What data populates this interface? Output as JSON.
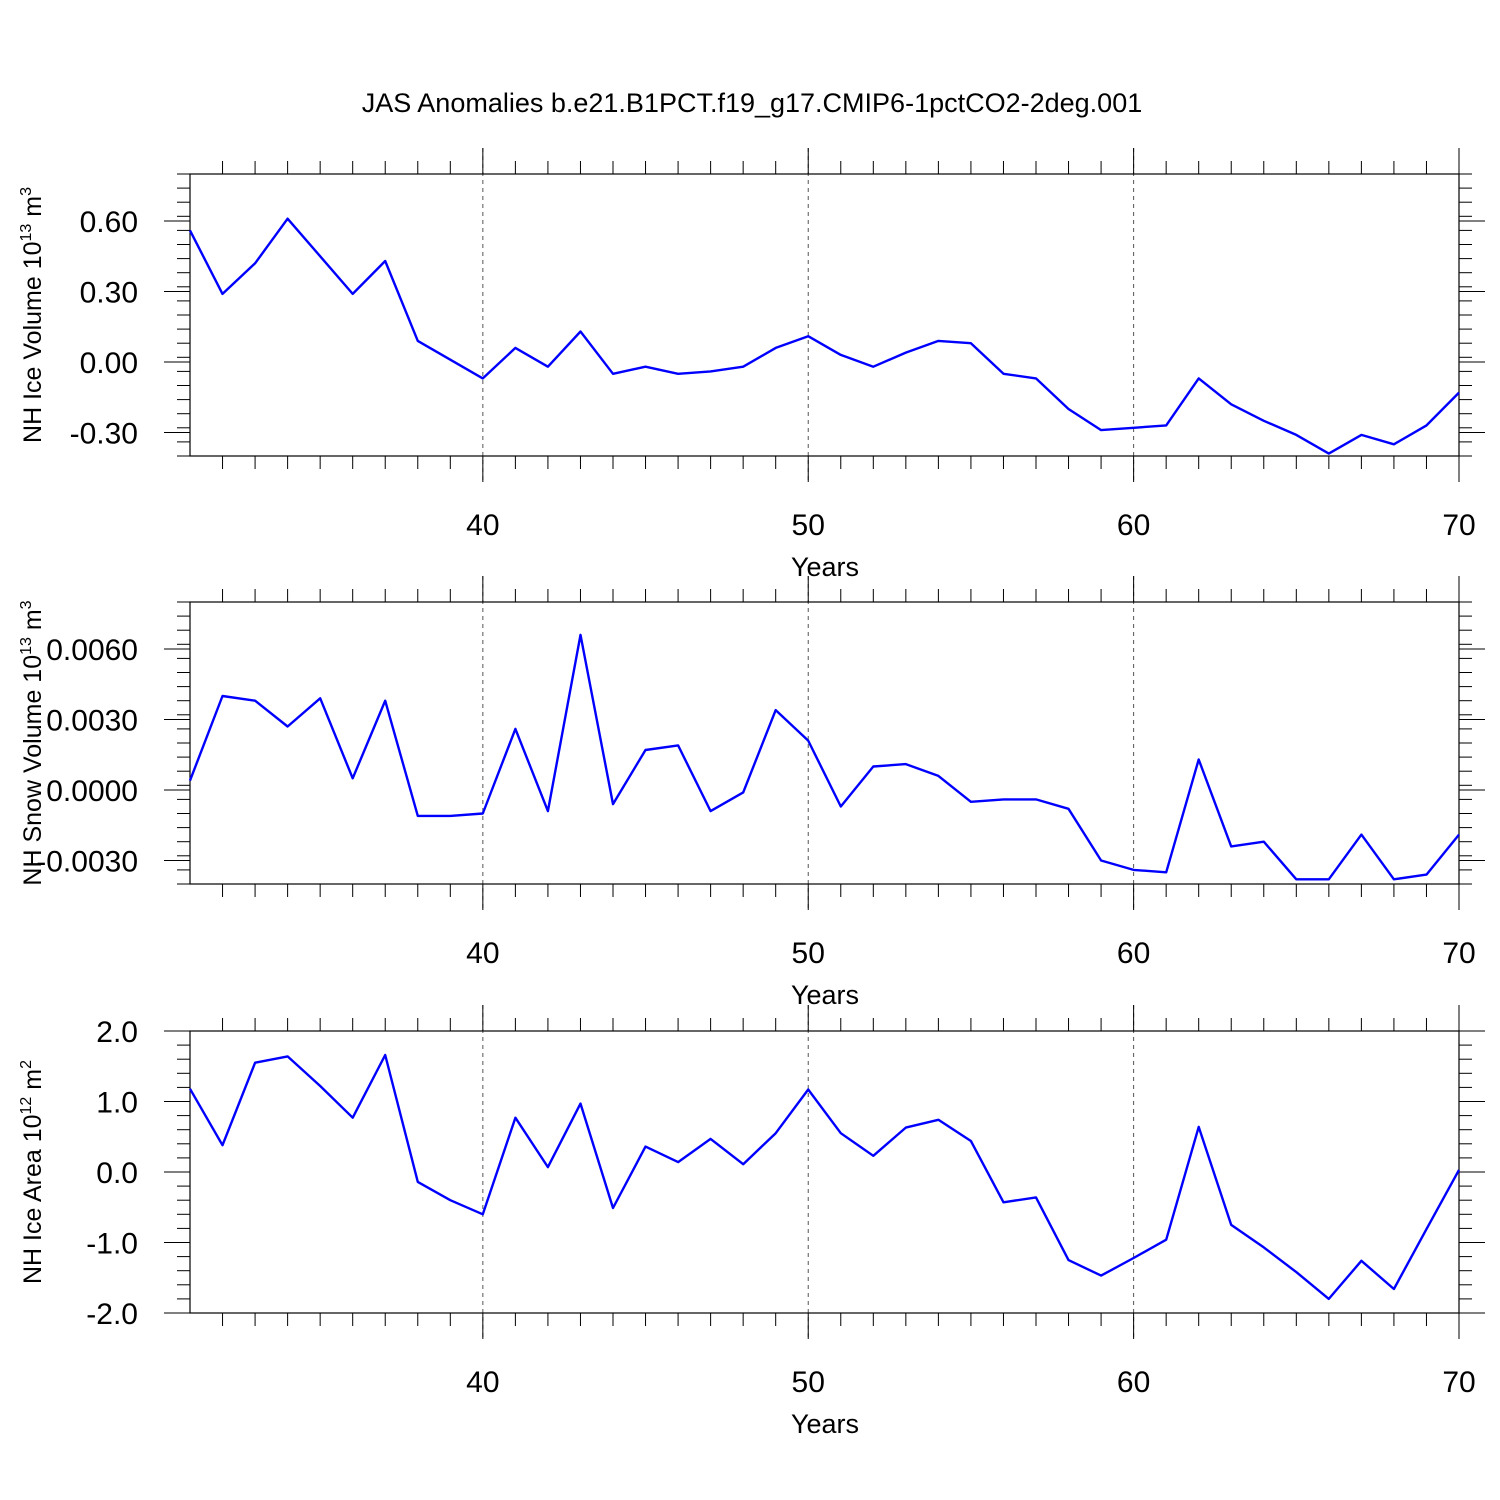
{
  "figure_title": "JAS Anomalies b.e21.B1PCT.f19_g17.CMIP6-1pctCO2-2deg.001",
  "chart_data": [
    {
      "type": "line",
      "ylabel": "NH Ice Volume 10",
      "ylabel_sup": "13",
      "ylabel_unit": "m",
      "ylabel_unit_sup": "3",
      "xlabel": "Years",
      "xlim": [
        31,
        70
      ],
      "ylim": [
        -0.4,
        0.8
      ],
      "yticks": [
        -0.3,
        0.0,
        0.3,
        0.6
      ],
      "ytick_labels": [
        "-0.30",
        "0.00",
        "0.30",
        "0.60"
      ],
      "xticks": [
        40,
        50,
        60,
        70
      ],
      "xtick_labels": [
        "40",
        "50",
        "60",
        "70"
      ],
      "grid_x": [
        40,
        50,
        60
      ],
      "line_color": "#0000ff",
      "series": [
        {
          "name": "NH Ice Volume",
          "values": [
            0.56,
            0.29,
            0.42,
            0.61,
            0.45,
            0.29,
            0.43,
            0.09,
            0.01,
            -0.07,
            0.06,
            -0.02,
            0.13,
            -0.05,
            -0.02,
            -0.05,
            -0.04,
            -0.02,
            0.06,
            0.11,
            0.03,
            -0.02,
            0.04,
            0.09,
            0.08,
            -0.05,
            -0.07,
            -0.2,
            -0.29,
            -0.28,
            -0.27,
            -0.07,
            -0.18,
            -0.25,
            -0.31,
            -0.39,
            -0.31,
            -0.35,
            -0.27,
            -0.13
          ]
        }
      ],
      "x": [
        31,
        32,
        33,
        34,
        35,
        36,
        37,
        38,
        39,
        40,
        41,
        42,
        43,
        44,
        45,
        46,
        47,
        48,
        49,
        50,
        51,
        52,
        53,
        54,
        55,
        56,
        57,
        58,
        59,
        60,
        61,
        62,
        63,
        64,
        65,
        66,
        67,
        68,
        69,
        70
      ]
    },
    {
      "type": "line",
      "ylabel": "NH Snow Volume 10",
      "ylabel_sup": "13",
      "ylabel_unit": "m",
      "ylabel_unit_sup": "3",
      "xlabel": "Years",
      "xlim": [
        31,
        70
      ],
      "ylim": [
        -0.004,
        0.008
      ],
      "yticks": [
        -0.003,
        0.0,
        0.003,
        0.006
      ],
      "ytick_labels": [
        "-0.0030",
        "0.0000",
        "0.0030",
        "0.0060"
      ],
      "xticks": [
        40,
        50,
        60,
        70
      ],
      "xtick_labels": [
        "40",
        "50",
        "60",
        "70"
      ],
      "grid_x": [
        40,
        50,
        60
      ],
      "line_color": "#0000ff",
      "series": [
        {
          "name": "NH Snow Volume",
          "values": [
            0.0004,
            0.004,
            0.0038,
            0.0027,
            0.0039,
            0.0005,
            0.0038,
            -0.0011,
            -0.0011,
            -0.001,
            0.0026,
            -0.0009,
            0.0066,
            -0.0006,
            0.0017,
            0.0019,
            -0.0009,
            -0.0001,
            0.0034,
            0.0021,
            -0.0007,
            0.001,
            0.0011,
            0.0006,
            -0.0005,
            -0.0004,
            -0.0004,
            -0.0008,
            -0.003,
            -0.0034,
            -0.0035,
            0.0013,
            -0.0024,
            -0.0022,
            -0.0038,
            -0.0038,
            -0.0019,
            -0.0038,
            -0.0036,
            -0.0019
          ]
        }
      ],
      "x": [
        31,
        32,
        33,
        34,
        35,
        36,
        37,
        38,
        39,
        40,
        41,
        42,
        43,
        44,
        45,
        46,
        47,
        48,
        49,
        50,
        51,
        52,
        53,
        54,
        55,
        56,
        57,
        58,
        59,
        60,
        61,
        62,
        63,
        64,
        65,
        66,
        67,
        68,
        69,
        70
      ]
    },
    {
      "type": "line",
      "ylabel": "NH Ice Area 10",
      "ylabel_sup": "12",
      "ylabel_unit": "m",
      "ylabel_unit_sup": "2",
      "xlabel": "Years",
      "xlim": [
        31,
        70
      ],
      "ylim": [
        -2.0,
        2.0
      ],
      "yticks": [
        -2.0,
        -1.0,
        0.0,
        1.0,
        2.0
      ],
      "ytick_labels": [
        "-2.0",
        "-1.0",
        "0.0",
        "1.0",
        "2.0"
      ],
      "xticks": [
        40,
        50,
        60,
        70
      ],
      "xtick_labels": [
        "40",
        "50",
        "60",
        "70"
      ],
      "grid_x": [
        40,
        50,
        60
      ],
      "line_color": "#0000ff",
      "series": [
        {
          "name": "NH Ice Area",
          "values": [
            1.18,
            0.38,
            1.55,
            1.64,
            1.22,
            0.77,
            1.66,
            -0.14,
            -0.4,
            -0.6,
            0.77,
            0.07,
            0.97,
            -0.51,
            0.36,
            0.14,
            0.47,
            0.11,
            0.55,
            1.17,
            0.55,
            0.23,
            0.63,
            0.74,
            0.44,
            -0.43,
            -0.36,
            -1.25,
            -1.47,
            -1.22,
            -0.96,
            0.64,
            -0.75,
            -1.07,
            -1.42,
            -1.8,
            -1.26,
            -1.66,
            -0.81,
            0.03
          ]
        }
      ],
      "x": [
        31,
        32,
        33,
        34,
        35,
        36,
        37,
        38,
        39,
        40,
        41,
        42,
        43,
        44,
        45,
        46,
        47,
        48,
        49,
        50,
        51,
        52,
        53,
        54,
        55,
        56,
        57,
        58,
        59,
        60,
        61,
        62,
        63,
        64,
        65,
        66,
        67,
        68,
        69,
        70
      ]
    }
  ]
}
